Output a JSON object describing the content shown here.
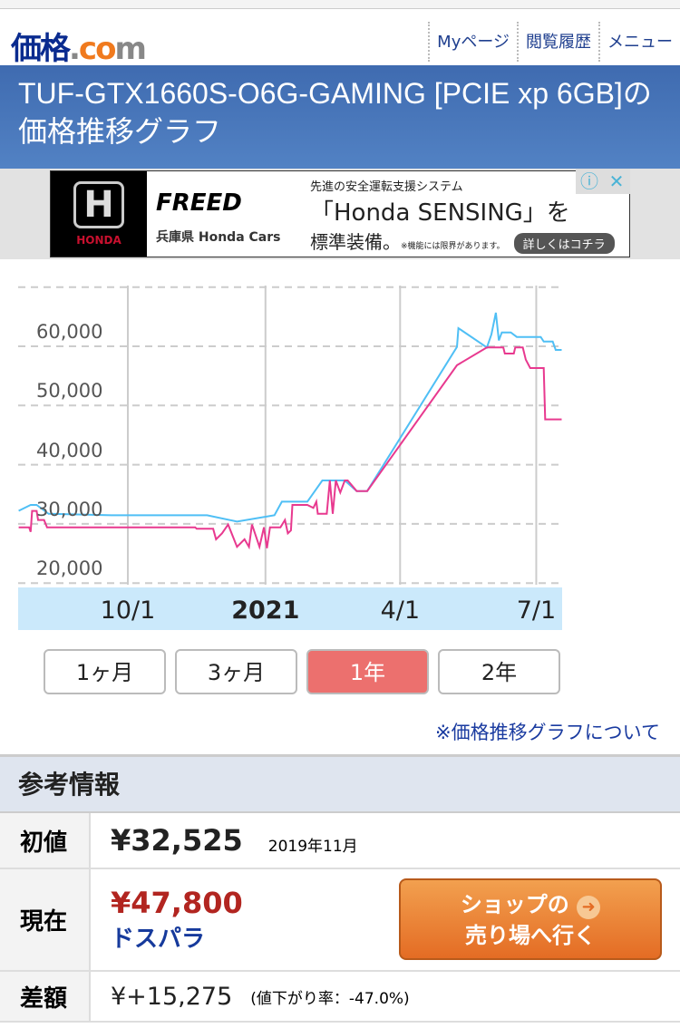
{
  "header": {
    "logo": "価格.com",
    "nav": [
      "Myページ",
      "閲覧履歴",
      "メニュー"
    ]
  },
  "title": "TUF-GTX1660S-O6G-GAMING [PCIE xp 6GB]の価格推移グラフ",
  "ad": {
    "brand": "HONDA",
    "model": "FREED",
    "dealer": "兵庫県 Honda Cars",
    "line1": "先進の安全運転支援システム",
    "line2": "「Honda SENSING」を",
    "line3": "標準装備。",
    "note": "※機能には限界があります。",
    "cta": "詳しくはコチラ",
    "info_icon": "info-icon",
    "close_icon": "close-icon"
  },
  "colors": {
    "avg_line": "#4fbff5",
    "min_line": "#e8398f",
    "active_button": "#ec706e",
    "title_bar": "#4a78bc"
  },
  "chart_data": {
    "type": "line",
    "y_ticks": [
      "60,000",
      "50,000",
      "40,000",
      "30,000",
      "20,000"
    ],
    "x_ticks": [
      {
        "date": "2020-10-01",
        "label": "10/1"
      },
      {
        "date": "2021-01-01",
        "label": "2021"
      },
      {
        "date": "2021-04-01",
        "label": "4/1"
      },
      {
        "date": "2021-07-01",
        "label": "7/1"
      }
    ],
    "ylim": [
      18000,
      70000
    ],
    "xlim": [
      "2020-07-19",
      "2021-07-18"
    ],
    "grid": true,
    "series": [
      {
        "color": "#4fbff5",
        "points": [
          [
            "2020-07-20",
            32200
          ],
          [
            "2020-07-28",
            33200
          ],
          [
            "2020-08-01",
            33200
          ],
          [
            "2020-08-09",
            31700
          ],
          [
            "2020-09-20",
            31450
          ],
          [
            "2020-11-23",
            31450
          ],
          [
            "2020-12-13",
            30400
          ],
          [
            "2021-01-07",
            31450
          ],
          [
            "2021-01-12",
            33750
          ],
          [
            "2021-01-29",
            33750
          ],
          [
            "2021-02-08",
            37330
          ],
          [
            "2021-02-23",
            37330
          ],
          [
            "2021-03-03",
            35540
          ],
          [
            "2021-03-10",
            35540
          ],
          [
            "2021-05-09",
            59900
          ],
          [
            "2021-05-10",
            63060
          ],
          [
            "2021-05-29",
            59800
          ],
          [
            "2021-06-01",
            62000
          ],
          [
            "2021-06-04",
            65670
          ],
          [
            "2021-06-06",
            61000
          ],
          [
            "2021-06-08",
            62350
          ],
          [
            "2021-06-14",
            62350
          ],
          [
            "2021-06-18",
            61580
          ],
          [
            "2021-07-04",
            61580
          ],
          [
            "2021-07-06",
            60800
          ],
          [
            "2021-07-12",
            60800
          ],
          [
            "2021-07-14",
            59390
          ],
          [
            "2021-07-18",
            59390
          ]
        ]
      },
      {
        "color": "#e8398f",
        "points": [
          [
            "2020-07-20",
            29420
          ],
          [
            "2020-07-27",
            29420
          ],
          [
            "2020-07-28",
            28650
          ],
          [
            "2020-07-29",
            32190
          ],
          [
            "2020-08-01",
            32190
          ],
          [
            "2020-08-02",
            30660
          ],
          [
            "2020-08-06",
            30660
          ],
          [
            "2020-08-08",
            29420
          ],
          [
            "2020-11-15",
            29420
          ],
          [
            "2020-11-16",
            29170
          ],
          [
            "2020-11-27",
            29170
          ],
          [
            "2020-11-29",
            27400
          ],
          [
            "2020-12-03",
            28400
          ],
          [
            "2020-12-07",
            29900
          ],
          [
            "2020-12-13",
            26130
          ],
          [
            "2020-12-18",
            27400
          ],
          [
            "2020-12-21",
            26130
          ],
          [
            "2020-12-23",
            29900
          ],
          [
            "2020-12-28",
            26130
          ],
          [
            "2020-12-31",
            29420
          ],
          [
            "2021-01-02",
            25900
          ],
          [
            "2021-01-04",
            29420
          ],
          [
            "2021-01-11",
            29420
          ],
          [
            "2021-01-14",
            30660
          ],
          [
            "2021-01-16",
            28400
          ],
          [
            "2021-01-18",
            28900
          ],
          [
            "2021-01-19",
            33200
          ],
          [
            "2021-01-29",
            33200
          ],
          [
            "2021-02-02",
            32700
          ],
          [
            "2021-02-04",
            33750
          ],
          [
            "2021-02-05",
            31700
          ],
          [
            "2021-02-11",
            31700
          ],
          [
            "2021-02-13",
            37330
          ],
          [
            "2021-02-15",
            31700
          ],
          [
            "2021-02-17",
            37330
          ],
          [
            "2021-02-20",
            35300
          ],
          [
            "2021-02-23",
            37330
          ],
          [
            "2021-02-25",
            37330
          ],
          [
            "2021-03-03",
            35540
          ],
          [
            "2021-03-10",
            35540
          ],
          [
            "2021-05-09",
            56800
          ],
          [
            "2021-05-29",
            59800
          ],
          [
            "2021-06-09",
            59800
          ],
          [
            "2021-06-10",
            58780
          ],
          [
            "2021-06-16",
            58780
          ],
          [
            "2021-06-17",
            59800
          ],
          [
            "2021-06-22",
            59800
          ],
          [
            "2021-06-24",
            57750
          ],
          [
            "2021-06-27",
            56330
          ],
          [
            "2021-07-06",
            56330
          ],
          [
            "2021-07-07",
            47650
          ],
          [
            "2021-07-18",
            47650
          ]
        ]
      }
    ]
  },
  "range_buttons": [
    {
      "label": "1ヶ月"
    },
    {
      "label": "3ヶ月"
    },
    {
      "label": "1年",
      "active": true
    },
    {
      "label": "2年"
    }
  ],
  "about_link": "※価格推移グラフについて",
  "info": {
    "heading": "参考情報",
    "initial": {
      "label": "初値",
      "price": "¥32,525",
      "date": "2019年11月"
    },
    "current": {
      "label": "現在",
      "price": "¥47,800",
      "shop": "ドスパラ",
      "button_line1": "ショップの",
      "button_line2": "売り場へ行く",
      "button_icon": "arrow-right-circle-icon"
    },
    "difference": {
      "label": "差額",
      "value": "¥+15,275",
      "rate": "(値下がり率：-47.0%)"
    }
  }
}
